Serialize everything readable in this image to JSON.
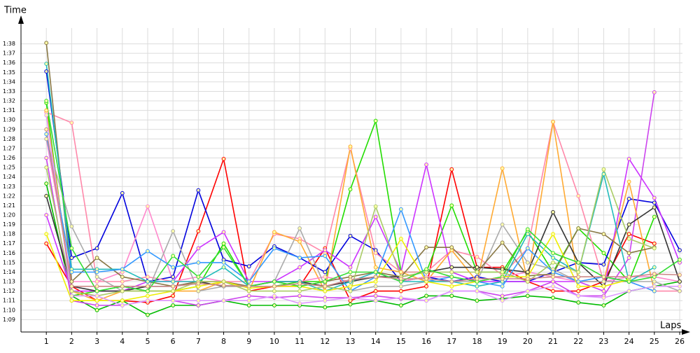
{
  "chart_data": {
    "type": "line",
    "y_label": "Time",
    "x_label": "Laps",
    "x": [
      1,
      2,
      3,
      4,
      5,
      6,
      7,
      8,
      9,
      10,
      11,
      12,
      13,
      14,
      15,
      16,
      17,
      18,
      19,
      20,
      21,
      22,
      23,
      24,
      25,
      26
    ],
    "xlim": [
      0,
      26
    ],
    "xticks": [
      1,
      2,
      3,
      4,
      5,
      6,
      7,
      8,
      9,
      10,
      11,
      12,
      13,
      14,
      15,
      16,
      17,
      18,
      19,
      20,
      21,
      22,
      23,
      24,
      25,
      26
    ],
    "ylim": [
      67.7,
      100.4
    ],
    "yticks": [
      {
        "value": 69,
        "label": "1:09"
      },
      {
        "value": 70,
        "label": "1:10"
      },
      {
        "value": 71,
        "label": "1:11"
      },
      {
        "value": 72,
        "label": "1:12"
      },
      {
        "value": 73,
        "label": "1:13"
      },
      {
        "value": 74,
        "label": "1:14"
      },
      {
        "value": 75,
        "label": "1:15"
      },
      {
        "value": 76,
        "label": "1:16"
      },
      {
        "value": 77,
        "label": "1:17"
      },
      {
        "value": 78,
        "label": "1:18"
      },
      {
        "value": 79,
        "label": "1:19"
      },
      {
        "value": 80,
        "label": "1:20"
      },
      {
        "value": 81,
        "label": "1:21"
      },
      {
        "value": 82,
        "label": "1:22"
      },
      {
        "value": 83,
        "label": "1:23"
      },
      {
        "value": 84,
        "label": "1:24"
      },
      {
        "value": 85,
        "label": "1:25"
      },
      {
        "value": 86,
        "label": "1:26"
      },
      {
        "value": 87,
        "label": "1:27"
      },
      {
        "value": 88,
        "label": "1:28"
      },
      {
        "value": 89,
        "label": "1:29"
      },
      {
        "value": 90,
        "label": "1:30"
      },
      {
        "value": 91,
        "label": "1:31"
      },
      {
        "value": 92,
        "label": "1:32"
      },
      {
        "value": 93,
        "label": "1:33"
      },
      {
        "value": 94,
        "label": "1:34"
      },
      {
        "value": 95,
        "label": "1:35"
      },
      {
        "value": 96,
        "label": "1:36"
      },
      {
        "value": 97,
        "label": "1:37"
      },
      {
        "value": 98,
        "label": "1:38"
      }
    ],
    "grid": true,
    "series": [
      {
        "color": "#ff0000",
        "values": [
          77,
          72.5,
          71,
          71,
          70.8,
          71.5,
          78.3,
          85.9,
          72,
          72.5,
          72.5,
          76.5,
          71,
          72,
          72,
          72.5,
          84.8,
          74.5,
          74.5,
          73,
          72,
          72,
          73,
          78,
          77,
          null
        ]
      },
      {
        "color": "#00bb00",
        "values": [
          83.3,
          71.5,
          70,
          71,
          69.5,
          70.5,
          70.5,
          71,
          70.5,
          70.5,
          70.5,
          70.3,
          70.6,
          71,
          70.5,
          71.5,
          71.5,
          71,
          71.2,
          71.5,
          71.3,
          70.8,
          70.5,
          72,
          72.5,
          73
        ]
      },
      {
        "color": "#22dd00",
        "values": [
          91.8,
          71.5,
          72,
          72.5,
          72,
          72,
          72.5,
          77,
          72.5,
          72.5,
          73,
          73,
          82.7,
          89.9,
          74,
          74,
          81,
          74,
          74,
          78.3,
          74,
          78.6,
          76,
          73,
          79.8,
          null
        ]
      },
      {
        "color": "#0000dd",
        "values": [
          95.1,
          75.5,
          76.5,
          82.3,
          73,
          73.5,
          82.6,
          75.3,
          74.6,
          76.7,
          75.5,
          74,
          77.8,
          76.3,
          73,
          73.5,
          73,
          73.5,
          73,
          73,
          74,
          75,
          74.8,
          81.7,
          81.3,
          76.3
        ]
      },
      {
        "color": "#ff88aa",
        "values": [
          90.8,
          89.7,
          73,
          73,
          73.5,
          73,
          73,
          73,
          73,
          78,
          77.5,
          76,
          87,
          76,
          74,
          74,
          76.3,
          75.6,
          73.7,
          76.5,
          89.8,
          82,
          73,
          73,
          72,
          72
        ]
      },
      {
        "color": "#cc33ff",
        "values": [
          80,
          72,
          72,
          72,
          73,
          73,
          76.5,
          78.2,
          73,
          73,
          74.5,
          76.3,
          74.5,
          79.8,
          74,
          85.3,
          74,
          73,
          73,
          73,
          73,
          73,
          72,
          85.9,
          81.8,
          75
        ]
      },
      {
        "color": "#cc44ee",
        "values": [
          86,
          71,
          70.5,
          70.5,
          71,
          71,
          70.5,
          71,
          71.5,
          71.3,
          71.5,
          71.3,
          71.3,
          71.5,
          71.2,
          71,
          72,
          72,
          71.5,
          72,
          73,
          71.5,
          71.5,
          75.5,
          92.9,
          null
        ]
      },
      {
        "color": "#ffaa33",
        "values": [
          91,
          72,
          71,
          72,
          72,
          72,
          72,
          73,
          72,
          78.2,
          77.2,
          72,
          87.2,
          74.5,
          74,
          73,
          76.3,
          73,
          84.9,
          73,
          89.8,
          73,
          73,
          83.5,
          72,
          null
        ]
      },
      {
        "color": "#ff88cc",
        "values": [
          88,
          73,
          73,
          74,
          80.9,
          73,
          73.5,
          73,
          72.5,
          73,
          73,
          73.5,
          73,
          74,
          73,
          73.5,
          73.5,
          73,
          73.5,
          74,
          73.5,
          73,
          73,
          73.5,
          73.5,
          73
        ]
      },
      {
        "color": "#333333",
        "values": [
          82,
          72.5,
          72,
          72,
          72.5,
          72.5,
          73,
          72.5,
          72.5,
          73,
          73,
          72.5,
          73,
          73.5,
          73.5,
          74,
          74.5,
          74.5,
          74.3,
          74,
          80.3,
          75,
          72.5,
          79,
          80.8,
          73
        ]
      },
      {
        "color": "#aaaaaa",
        "values": [
          88,
          78.8,
          73.5,
          72,
          72,
          78.3,
          72,
          72.5,
          72.5,
          73,
          78.6,
          72.5,
          72,
          72.5,
          72.5,
          73,
          73,
          73,
          79,
          75,
          74.3,
          73,
          73,
          73,
          73,
          72
        ]
      },
      {
        "color": "#887744",
        "values": [
          98.1,
          73,
          75.5,
          73.5,
          73,
          72.5,
          73,
          73,
          72.5,
          73,
          72.5,
          73,
          73.5,
          74,
          73.5,
          76.6,
          76.6,
          74,
          77.1,
          73.6,
          73.8,
          78.6,
          78,
          76,
          76.6,
          null
        ]
      },
      {
        "color": "#22bbbb",
        "values": [
          95.9,
          74.3,
          74.3,
          74.3,
          73,
          73,
          73,
          74.5,
          72.5,
          73,
          73,
          72,
          73,
          74,
          73,
          73,
          73,
          72.5,
          73,
          78,
          75.5,
          74,
          84.3,
          73,
          74.5,
          null
        ]
      },
      {
        "color": "#3399ff",
        "values": [
          88.5,
          74,
          74,
          74.3,
          76.2,
          74.5,
          75,
          75,
          73,
          76.5,
          75.5,
          75.7,
          72,
          73.5,
          80.6,
          73,
          73.5,
          73,
          72.5,
          76.5,
          74,
          73,
          73.5,
          73,
          72,
          null
        ]
      },
      {
        "color": "#eeee00",
        "values": [
          78,
          71,
          71,
          71,
          71.5,
          72,
          72.5,
          73,
          72.3,
          72.5,
          72.5,
          72,
          72.5,
          73,
          77.5,
          73,
          72.5,
          73,
          73.5,
          73.5,
          78,
          72.5,
          72.5,
          73.2,
          null,
          null
        ]
      },
      {
        "color": "#aacc66",
        "values": [
          85,
          72,
          71.5,
          72,
          72,
          72,
          73,
          73,
          72,
          72,
          72,
          72.5,
          72,
          80.9,
          73.5,
          74,
          74,
          74,
          74,
          73,
          75,
          74,
          84.8,
          77.5,
          76.5,
          null
        ]
      },
      {
        "color": "#33dd33",
        "values": [
          92,
          76.5,
          72,
          72.5,
          72,
          75.7,
          73.5,
          76.6,
          72.5,
          73,
          72.5,
          73,
          74,
          74,
          73,
          74.3,
          73.5,
          73,
          73.5,
          78.5,
          76,
          75,
          73.5,
          73,
          73.5,
          75.3
        ]
      },
      {
        "color": "#dd99ff",
        "values": [
          90.5,
          71.5,
          71.5,
          70.5,
          71,
          71,
          71,
          71,
          71,
          71.5,
          70.7,
          71,
          71.3,
          71,
          71.3,
          71,
          72,
          72,
          71,
          72,
          72.5,
          71.5,
          71.3,
          72,
          72.5,
          72.5
        ]
      },
      {
        "color": "#cc8888",
        "values": [
          89,
          72.5,
          72.5,
          72.5,
          72.5,
          72.5,
          72.8,
          72.6,
          72.5,
          72.5,
          72.8,
          72.5,
          73.2,
          73.5,
          73.3,
          73.3,
          73,
          73.3,
          73.3,
          73.3,
          73.5,
          73.5,
          73.5,
          73.5,
          73.8,
          73.7
        ]
      }
    ]
  }
}
